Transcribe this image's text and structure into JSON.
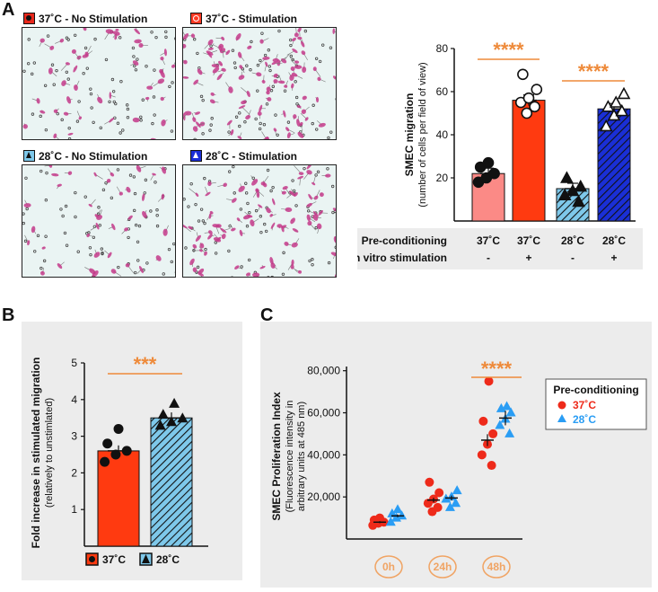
{
  "panel_a": {
    "letter": "A",
    "images": [
      {
        "label": "37˚C - No Stimulation",
        "swatch_color": "#e8281c",
        "symbol": "filled-circle"
      },
      {
        "label": "37˚C - Stimulation",
        "swatch_color": "#ff3a24",
        "symbol": "open-circle"
      },
      {
        "label": "28˚C - No Stimulation",
        "swatch_color": "#7ec8ea",
        "symbol": "filled-triangle"
      },
      {
        "label": "28˚C - Stimulation",
        "swatch_color": "#1a2fd6",
        "symbol": "open-triangle"
      }
    ],
    "table": {
      "rows": [
        {
          "header": "Pre-conditioning",
          "cells": [
            "37˚C",
            "37˚C",
            "28˚C",
            "28˚C"
          ]
        },
        {
          "header": "In vitro stimulation",
          "cells": [
            "-",
            "+",
            "-",
            "+"
          ]
        }
      ]
    }
  },
  "panel_b": {
    "letter": "B",
    "legend": [
      {
        "label": "37˚C",
        "color": "#ff3a10"
      },
      {
        "label": "28˚C",
        "color": "#7ec8ea"
      }
    ]
  },
  "panel_c": {
    "letter": "C",
    "legend": {
      "title": "Pre-conditioning",
      "items": [
        {
          "label": "37˚C",
          "color": "#ee2a1a"
        },
        {
          "label": "28˚C",
          "color": "#2a9df4"
        }
      ]
    }
  },
  "chart_data": [
    {
      "id": "A",
      "type": "bar",
      "categories": [
        "37˚C -",
        "37˚C +",
        "28˚C -",
        "28˚C +"
      ],
      "values": [
        22,
        56,
        15,
        52
      ],
      "points": [
        [
          18,
          20,
          22,
          25,
          27
        ],
        [
          50,
          53,
          55,
          57,
          61,
          68
        ],
        [
          9,
          12,
          14,
          16,
          20
        ],
        [
          44,
          49,
          51,
          53,
          55,
          59
        ]
      ],
      "colors": [
        "#fb8a86",
        "#ff3a10",
        "#7ec8ea",
        "#1a2fd6"
      ],
      "hatched": [
        false,
        false,
        true,
        true
      ],
      "ylabel": "SMEC migration",
      "ylabel2": "(number of cells per field of view)",
      "ylim": [
        0,
        80
      ],
      "yticks": [
        20,
        40,
        60,
        80
      ],
      "significance": [
        "****",
        "****"
      ]
    },
    {
      "id": "B",
      "type": "bar",
      "categories": [
        "37˚C",
        "28˚C"
      ],
      "values": [
        2.6,
        3.5
      ],
      "points": [
        [
          2.3,
          2.5,
          2.6,
          2.8,
          3.2
        ],
        [
          3.3,
          3.4,
          3.5,
          3.6,
          3.9
        ]
      ],
      "colors": [
        "#ff3a10",
        "#7ec8ea"
      ],
      "hatched": [
        false,
        true
      ],
      "ylabel": "Fold increase in stimulated migration",
      "ylabel2": "(relatively to unstimlated)",
      "ylim": [
        0,
        5
      ],
      "yticks": [
        1,
        2,
        3,
        4,
        5
      ],
      "significance": "***"
    },
    {
      "id": "C",
      "type": "scatter",
      "categories": [
        "0h",
        "24h",
        "48h"
      ],
      "series": [
        {
          "name": "37˚C",
          "values": [
            [
              6500,
              7500,
              8000,
              9000,
              10000
            ],
            [
              13000,
              15000,
              17000,
              19000,
              22000,
              27000
            ],
            [
              35000,
              40000,
              45000,
              50000,
              56000,
              75000
            ]
          ],
          "means": [
            8000,
            18500,
            47000
          ]
        },
        {
          "name": "28˚C",
          "values": [
            [
              8000,
              10000,
              11000,
              12000,
              14000
            ],
            [
              15000,
              17000,
              19000,
              20000,
              23000
            ],
            [
              50000,
              54000,
              57000,
              60000,
              62000,
              63000
            ]
          ],
          "means": [
            11000,
            19500,
            57500
          ]
        }
      ],
      "ylabel": "SMEC Proliferation Index",
      "ylabel2": "(Fluorescence intensity in",
      "ylabel3": "arbitrary units at 485 nm)",
      "ylim": [
        0,
        82000
      ],
      "yticks": [
        "20,000",
        "40,000",
        "60,000",
        "80,000"
      ],
      "yticks_values": [
        20000,
        40000,
        60000,
        80000
      ],
      "significance": "****"
    }
  ]
}
